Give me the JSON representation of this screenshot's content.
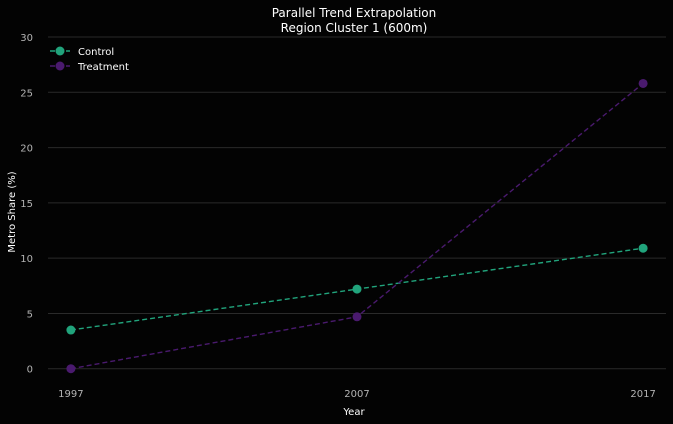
{
  "chart_data": {
    "type": "line",
    "title": [
      "Parallel Trend Extrapolation",
      "Region Cluster 1 (600m)"
    ],
    "xlabel": "Year",
    "ylabel": "Metro Share (%)",
    "x": [
      1997,
      2007,
      2017
    ],
    "x_ticks": [
      "1997",
      "2007",
      "2017"
    ],
    "y_ticks": [
      "0",
      "5",
      "10",
      "15",
      "20",
      "25",
      "30"
    ],
    "ylim": [
      -1.2,
      30
    ],
    "grid": true,
    "legend_position": "top-left",
    "series": [
      {
        "name": "Control",
        "values": [
          3.5,
          7.2,
          10.9
        ],
        "color": "#21a47c",
        "linestyle": "dashed",
        "marker": "circle"
      },
      {
        "name": "Treatment",
        "values": [
          0.0,
          4.7,
          25.8
        ],
        "color": "#4a1a6e",
        "linestyle": "dashed",
        "marker": "circle"
      }
    ]
  }
}
